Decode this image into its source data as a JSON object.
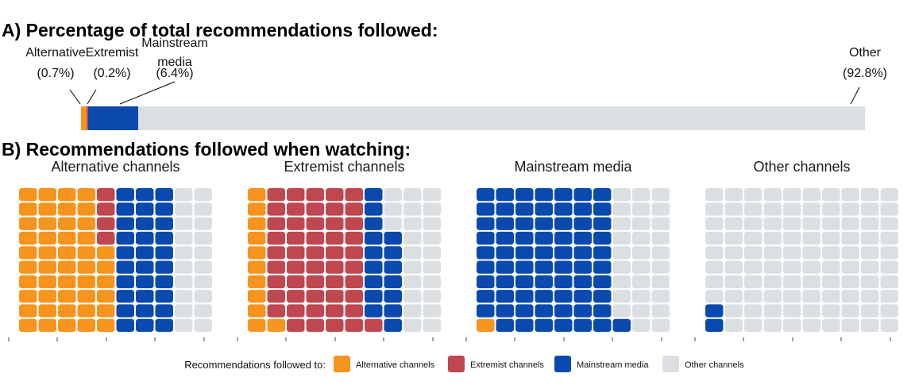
{
  "chart_data": [
    {
      "type": "bar",
      "title": "A) Percentage of total recommendations followed:",
      "categories": [
        "Alternative",
        "Extremist",
        "Mainstream media",
        "Other"
      ],
      "values": [
        0.7,
        0.2,
        6.4,
        92.8
      ],
      "labels": [
        {
          "name": "Alternative",
          "pct": "(0.7%)"
        },
        {
          "name": "Extremist",
          "pct": "(0.2%)"
        },
        {
          "name_lines": [
            "Mainstream",
            "media"
          ],
          "pct": "(6.4%)"
        },
        {
          "name": "Other",
          "pct": "(92.8%)"
        }
      ],
      "stacked": true,
      "colors": [
        "#F7941D",
        "#C0474F",
        "#0A4AAE",
        "#DCDFE1"
      ]
    },
    {
      "type": "heatmap",
      "subtype": "waffle",
      "title": "B) Recommendations followed when watching:",
      "grid": {
        "rows": 10,
        "cols": 10
      },
      "panels": [
        {
          "title": "Alternative channels",
          "counts": [
            46,
            4,
            30,
            20
          ]
        },
        {
          "title": "Extremist channels",
          "counts": [
            11,
            50,
            16,
            23
          ]
        },
        {
          "title": "Mainstream media",
          "counts": [
            1,
            0,
            70,
            29
          ]
        },
        {
          "title": "Other channels",
          "counts": [
            0,
            0,
            2,
            98
          ]
        }
      ]
    }
  ],
  "legend": {
    "title": "Recommendations followed to:",
    "items": [
      {
        "label": "Alternative channels",
        "color": "#F7941D"
      },
      {
        "label": "Extremist channels",
        "color": "#C0474F"
      },
      {
        "label": "Mainstream media",
        "color": "#0A4AAE"
      },
      {
        "label": "Other channels",
        "color": "#DCDFE1"
      }
    ]
  }
}
